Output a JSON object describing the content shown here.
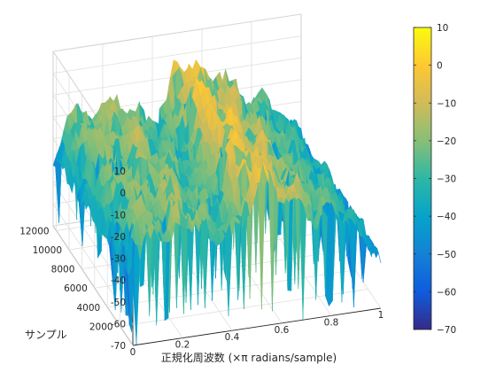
{
  "chart_data": {
    "type": "surface",
    "title": "",
    "xlabel": "正規化周波数 (×π radians/sample)",
    "ylabel": "サンプル",
    "zlabel": "",
    "xlim": [
      0,
      1
    ],
    "ylim": [
      0,
      12500
    ],
    "zlim": [
      -70,
      10
    ],
    "x_ticks": [
      "0",
      "0.2",
      "0.4",
      "0.6",
      "0.8",
      "1"
    ],
    "y_ticks": [
      "2000",
      "4000",
      "6000",
      "8000",
      "10000",
      "12000"
    ],
    "z_ticks": [
      "10",
      "0",
      "-10",
      "-20",
      "-30",
      "-40",
      "-50",
      "-60",
      "-70"
    ],
    "colorbar": {
      "colormap": "parula",
      "range": [
        -70,
        10
      ],
      "ticks": [
        "10",
        "0",
        "−10",
        "−20",
        "−30",
        "−40",
        "−50",
        "−60",
        "−70"
      ],
      "colors": [
        "#352a87",
        "#0f5cdd",
        "#1481d6",
        "#06a4ca",
        "#2eb7a4",
        "#87bf77",
        "#d1bb59",
        "#fec832",
        "#f9fb0e"
      ]
    },
    "grid": true,
    "view": "3-D view, x axis running toward the viewer from left to right, sample axis receding to the upper left",
    "surface_profile": {
      "normalized_frequency": [
        0.0,
        0.05,
        0.1,
        0.15,
        0.2,
        0.25,
        0.3,
        0.35,
        0.4,
        0.45,
        0.5,
        0.55,
        0.6,
        0.65,
        0.7,
        0.75,
        0.8,
        0.85,
        0.9,
        0.95,
        1.0
      ],
      "typical_level_db": [
        -40,
        -25,
        -20,
        -28,
        -22,
        -25,
        -30,
        -30,
        -32,
        -26,
        -10,
        -12,
        -18,
        -20,
        -22,
        -28,
        -28,
        -30,
        -34,
        -42,
        -50
      ],
      "peak_level_db": [
        -38,
        -20,
        -15,
        -18,
        -10,
        -12,
        -18,
        -20,
        -22,
        -18,
        0,
        0,
        -5,
        -8,
        -10,
        -20,
        -20,
        -25,
        -28,
        -35,
        -45
      ],
      "valley_level_db": -70
    }
  }
}
